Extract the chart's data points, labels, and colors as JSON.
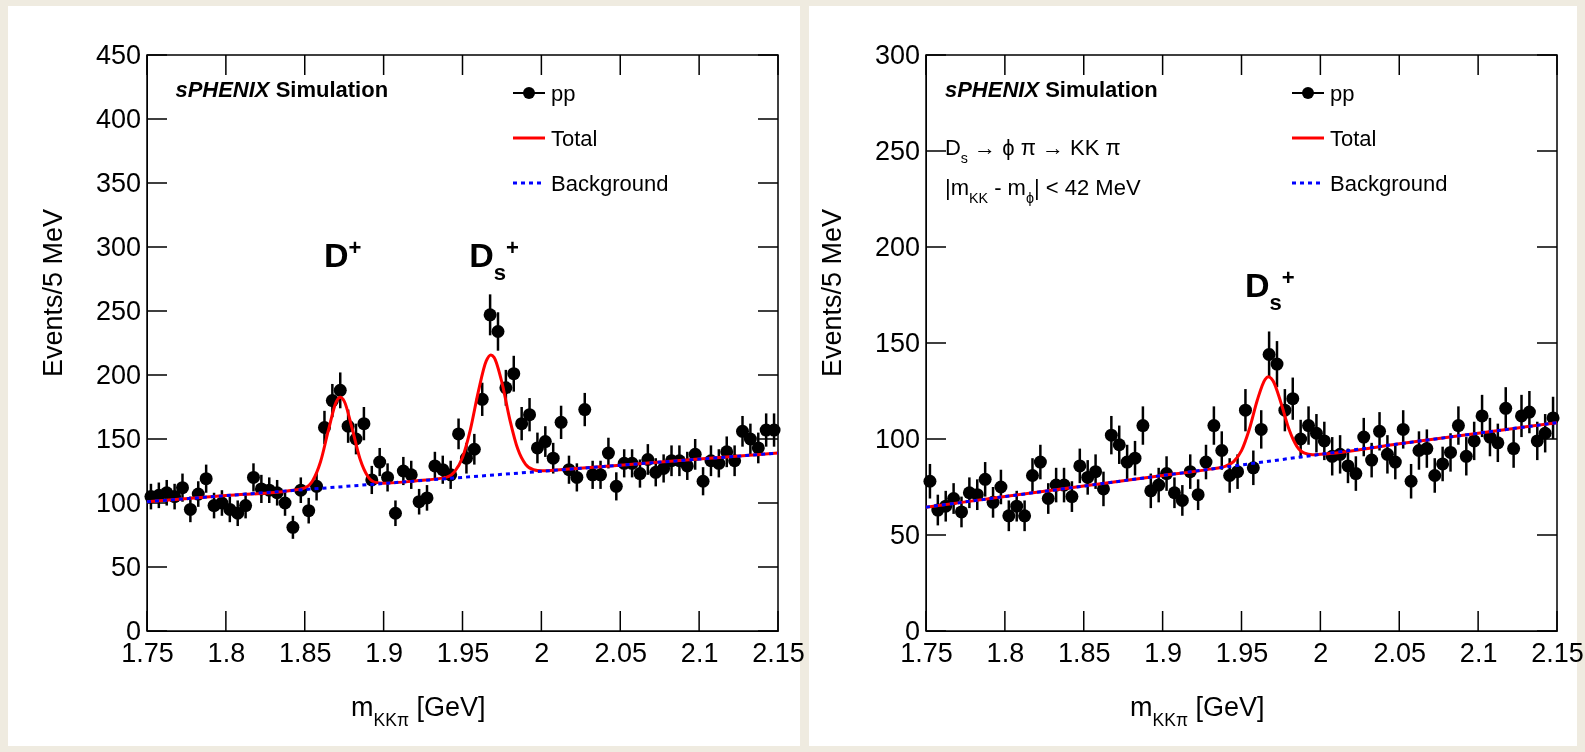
{
  "chart_data": [
    {
      "type": "scatter",
      "xlabel": "m$_{KKπ}$ [GeV]",
      "ylabel": "Events/5 MeV",
      "xlim": [
        1.75,
        2.15
      ],
      "ylim": [
        0,
        450
      ],
      "xticks": [
        1.75,
        1.8,
        1.85,
        1.9,
        1.95,
        2,
        2.05,
        2.1,
        2.15
      ],
      "yticks": [
        0,
        50,
        100,
        150,
        200,
        250,
        300,
        350,
        400,
        450
      ],
      "legend": "top right",
      "annotations": [
        "sPHENIX Simulation",
        "D$^{+}$",
        "D$_{s}$$^{+}$"
      ],
      "x": [
        1.7525,
        1.7575,
        1.7625,
        1.7675,
        1.7725,
        1.7775,
        1.7825,
        1.7875,
        1.7925,
        1.7975,
        1.8025,
        1.8075,
        1.8125,
        1.8175,
        1.8225,
        1.8275,
        1.8325,
        1.8375,
        1.8425,
        1.8475,
        1.8525,
        1.8575,
        1.8625,
        1.8675,
        1.8725,
        1.8775,
        1.8825,
        1.8875,
        1.8925,
        1.8975,
        1.9025,
        1.9075,
        1.9125,
        1.9175,
        1.9225,
        1.9275,
        1.9325,
        1.9375,
        1.9425,
        1.9475,
        1.9525,
        1.9575,
        1.9625,
        1.9675,
        1.9725,
        1.9775,
        1.9825,
        1.9875,
        1.9925,
        1.9975,
        2.0025,
        2.0075,
        2.0125,
        2.0175,
        2.0225,
        2.0275,
        2.0325,
        2.0375,
        2.0425,
        2.0475,
        2.0525,
        2.0575,
        2.0625,
        2.0675,
        2.0725,
        2.0775,
        2.0825,
        2.0875,
        2.0925,
        2.0975,
        2.1025,
        2.1075,
        2.1125,
        2.1175,
        2.1225,
        2.1275,
        2.1325,
        2.1375,
        2.1425,
        2.1475
      ],
      "series": [
        {
          "name": "pp",
          "marker": "circle",
          "color": "#000000",
          "values": [
            105,
            106,
            108,
            105,
            112,
            95,
            107,
            119,
            98,
            100,
            95,
            92,
            98,
            120,
            111,
            110,
            108,
            100,
            81,
            110,
            94,
            113,
            159,
            180,
            188,
            160,
            150,
            162,
            118,
            132,
            120,
            92,
            125,
            122,
            101,
            104,
            129,
            126,
            122,
            154,
            135,
            142,
            181,
            247,
            234,
            190,
            201,
            162,
            169,
            143,
            148,
            135,
            163,
            126,
            120,
            173,
            122,
            122,
            139,
            113,
            131,
            131,
            123,
            134,
            124,
            127,
            133,
            133,
            129,
            138,
            117,
            133,
            131,
            140,
            133,
            156,
            150,
            143,
            157,
            157
          ],
          "errors": [
            10,
            10,
            10,
            10,
            11,
            10,
            10,
            11,
            10,
            10,
            10,
            10,
            10,
            11,
            11,
            10,
            10,
            10,
            9,
            10,
            10,
            11,
            13,
            13,
            14,
            13,
            12,
            13,
            11,
            11,
            11,
            10,
            11,
            11,
            10,
            10,
            11,
            11,
            11,
            12,
            12,
            12,
            13,
            16,
            15,
            14,
            14,
            13,
            13,
            12,
            12,
            12,
            13,
            11,
            11,
            13,
            11,
            11,
            12,
            11,
            11,
            11,
            11,
            12,
            11,
            11,
            12,
            12,
            11,
            12,
            11,
            12,
            11,
            12,
            12,
            12,
            12,
            12,
            13,
            13
          ]
        },
        {
          "name": "Total",
          "type": "line",
          "color": "#ff0000",
          "line_style": "solid",
          "x": [
            1.75,
            1.8,
            1.84,
            1.85,
            1.855,
            1.86,
            1.865,
            1.87,
            1.8725,
            1.875,
            1.88,
            1.885,
            1.89,
            1.895,
            1.9,
            1.92,
            1.94,
            1.945,
            1.95,
            1.955,
            1.96,
            1.965,
            1.968,
            1.97,
            1.975,
            1.98,
            1.985,
            1.99,
            1.995,
            2,
            2.02,
            2.05,
            2.1,
            2.15
          ],
          "values": [
            101,
            105.8,
            109.6,
            111.8,
            117.4,
            132.2,
            156.9,
            179.1,
            182.6,
            179.6,
            158.4,
            134.5,
            120.7,
            116.1,
            115.5,
            117.2,
            120.2,
            124.5,
            135.6,
            157.4,
            186.8,
            210.8,
            215.7,
            213.8,
            194.1,
            165.2,
            142.3,
            130.2,
            126,
            125.1,
            126.7,
            129.5,
            134.3,
            139
          ]
        },
        {
          "name": "Background",
          "type": "line",
          "color": "#0000ff",
          "line_style": "dotted",
          "x": [
            1.75,
            2.15
          ],
          "values": [
            101,
            139
          ]
        }
      ]
    },
    {
      "type": "scatter",
      "xlabel": "m$_{KKπ}$ [GeV]",
      "ylabel": "Events/5 MeV",
      "xlim": [
        1.75,
        2.15
      ],
      "ylim": [
        0,
        300
      ],
      "xticks": [
        1.75,
        1.8,
        1.85,
        1.9,
        1.95,
        2,
        2.05,
        2.1,
        2.15
      ],
      "yticks": [
        0,
        50,
        100,
        150,
        200,
        250,
        300
      ],
      "legend": "top right",
      "annotations": [
        "sPHENIX Simulation",
        "D$_{s}$ → ϕ π → KK π",
        "|m$_{KK}$ - m$_{ϕ}$| < 42 MeV",
        "D$_{s}$$^{+}$"
      ],
      "x": [
        1.7525,
        1.7575,
        1.7625,
        1.7675,
        1.7725,
        1.7775,
        1.7825,
        1.7875,
        1.7925,
        1.7975,
        1.8025,
        1.8075,
        1.8125,
        1.8175,
        1.8225,
        1.8275,
        1.8325,
        1.8375,
        1.8425,
        1.8475,
        1.8525,
        1.8575,
        1.8625,
        1.8675,
        1.8725,
        1.8775,
        1.8825,
        1.8875,
        1.8925,
        1.8975,
        1.9025,
        1.9075,
        1.9125,
        1.9175,
        1.9225,
        1.9275,
        1.9325,
        1.9375,
        1.9425,
        1.9475,
        1.9525,
        1.9575,
        1.9625,
        1.9675,
        1.9725,
        1.9775,
        1.9825,
        1.9875,
        1.9925,
        1.9975,
        2.0025,
        2.0075,
        2.0125,
        2.0175,
        2.0225,
        2.0275,
        2.0325,
        2.0375,
        2.0425,
        2.0475,
        2.0525,
        2.0575,
        2.0625,
        2.0675,
        2.0725,
        2.0775,
        2.0825,
        2.0875,
        2.0925,
        2.0975,
        2.1025,
        2.1075,
        2.1125,
        2.1175,
        2.1225,
        2.1275,
        2.1325,
        2.1375,
        2.1425,
        2.1475
      ],
      "series": [
        {
          "name": "pp",
          "marker": "circle",
          "color": "#000000",
          "values": [
            78,
            63,
            65,
            69,
            62,
            72,
            71,
            79,
            67,
            75,
            60,
            65,
            60,
            81,
            88,
            69,
            76,
            76,
            70,
            86,
            80,
            83,
            74,
            102,
            97,
            88,
            90,
            107,
            73,
            76,
            82,
            72,
            68,
            83,
            71,
            88,
            107,
            94,
            81,
            83,
            115,
            85,
            105,
            144,
            139,
            115,
            121,
            100,
            107,
            103,
            99,
            91,
            92,
            86,
            82,
            101,
            89,
            104,
            92,
            88,
            105,
            78,
            94,
            95,
            81,
            87,
            93,
            107,
            91,
            99,
            112,
            101,
            98,
            116,
            95,
            112,
            114,
            99,
            103,
            111
          ],
          "errors": [
            9,
            8,
            8,
            8,
            8,
            8,
            8,
            9,
            8,
            9,
            8,
            8,
            8,
            9,
            9,
            8,
            9,
            9,
            8,
            9,
            9,
            9,
            9,
            10,
            10,
            9,
            9,
            10,
            9,
            9,
            9,
            8,
            8,
            9,
            8,
            9,
            10,
            10,
            9,
            9,
            11,
            9,
            10,
            12,
            12,
            11,
            11,
            10,
            10,
            10,
            10,
            10,
            10,
            9,
            9,
            10,
            9,
            10,
            10,
            9,
            10,
            9,
            10,
            10,
            9,
            9,
            10,
            10,
            10,
            10,
            11,
            10,
            10,
            11,
            10,
            11,
            11,
            10,
            10,
            11
          ]
        },
        {
          "name": "Total",
          "type": "line",
          "color": "#ff0000",
          "line_style": "solid",
          "x": [
            1.75,
            1.8,
            1.85,
            1.9,
            1.93,
            1.94,
            1.945,
            1.95,
            1.955,
            1.96,
            1.965,
            1.967,
            1.97,
            1.975,
            1.98,
            1.985,
            1.99,
            1.995,
            2,
            2.05,
            2.1,
            2.15
          ],
          "values": [
            64.5,
            70,
            75.5,
            81,
            84.3,
            85.9,
            88.2,
            93.9,
            105.2,
            120.2,
            131.1,
            132.4,
            130.3,
            118.9,
            105.3,
            96.3,
            92.6,
            91.8,
            92,
            97.5,
            103,
            108.5
          ]
        },
        {
          "name": "Background",
          "type": "line",
          "color": "#0000ff",
          "line_style": "dotted",
          "x": [
            1.75,
            2.15
          ],
          "values": [
            64.5,
            108.5
          ]
        }
      ]
    }
  ]
}
